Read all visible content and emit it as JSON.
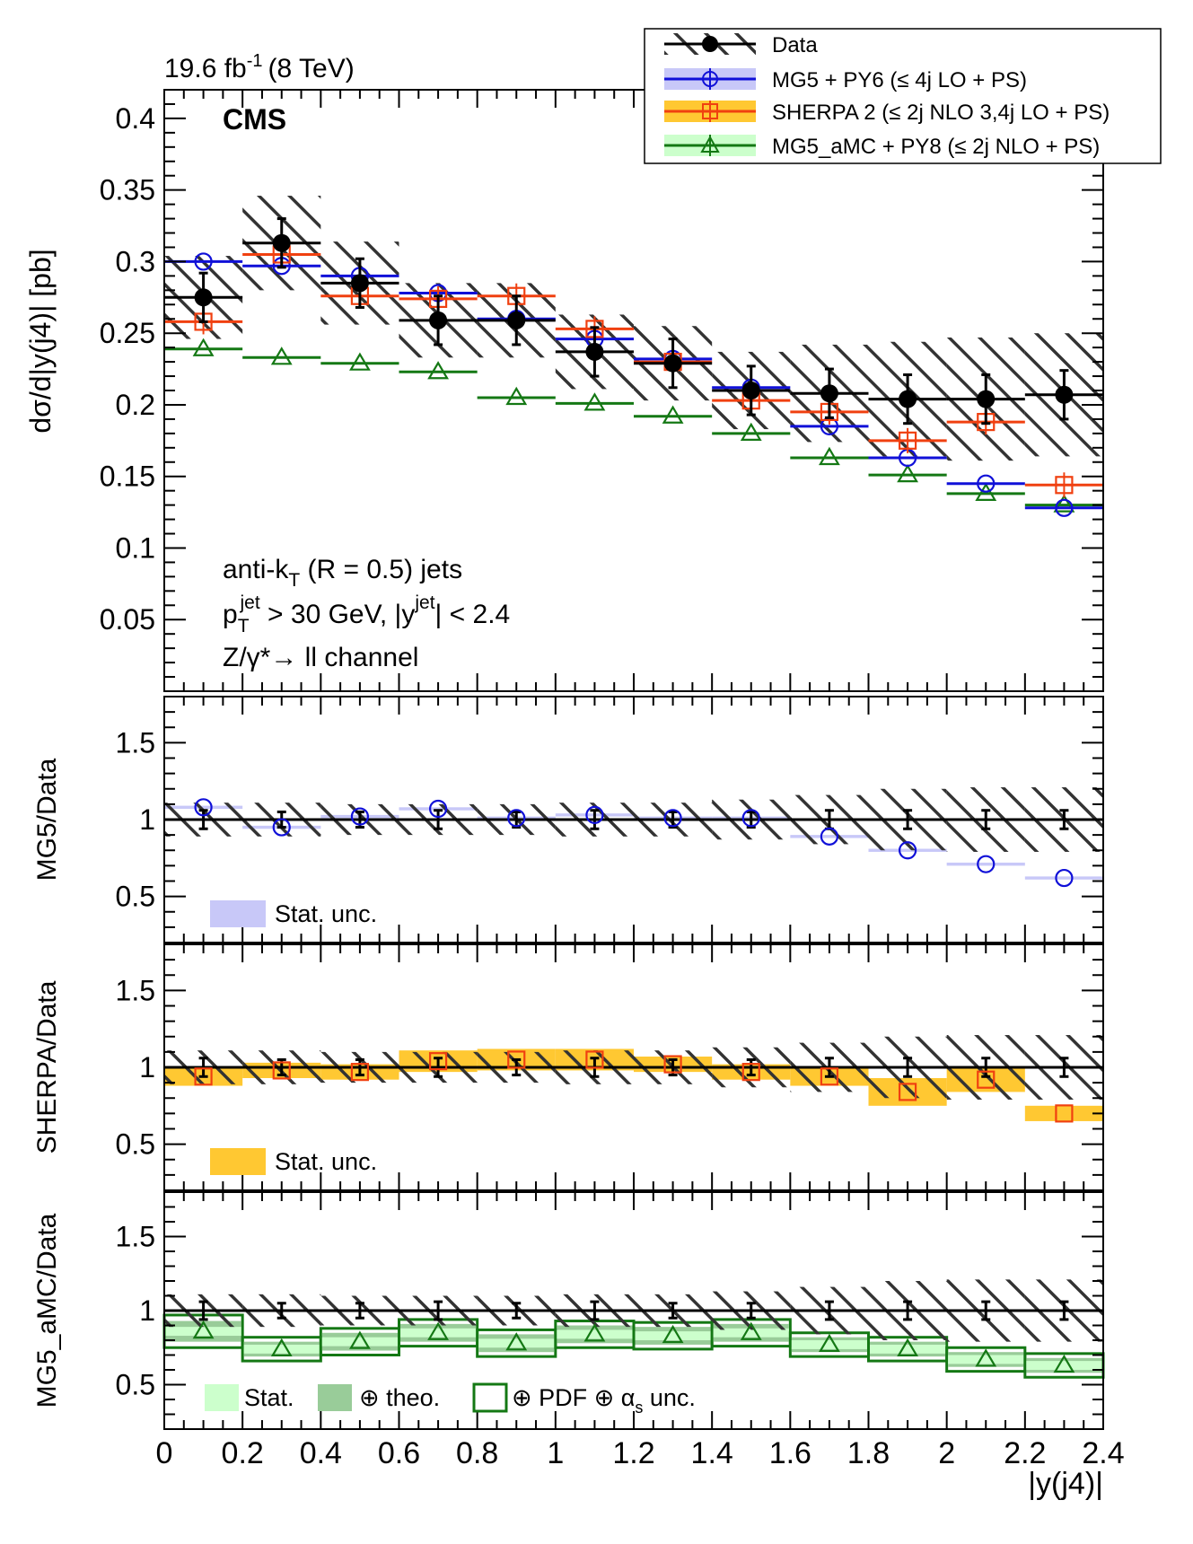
{
  "header": {
    "lumi": "19.6 fb",
    "lumi_sup": "-1",
    "energy": "(8 TeV)",
    "experiment": "CMS"
  },
  "legend": [
    {
      "key": "data",
      "label": "Data"
    },
    {
      "key": "mg5",
      "label": "MG5 + PY6 (≤ 4j LO + PS)"
    },
    {
      "key": "sherpa",
      "label": "SHERPA 2 (≤ 2j NLO 3,4j LO + PS)"
    },
    {
      "key": "amc",
      "label": "MG5_aMC + PY8 (≤ 2j NLO + PS)"
    }
  ],
  "annotations": {
    "line1": "anti-k",
    "line1_sub": "T",
    "line1_rest": " (R = 0.5) jets",
    "line2_p": "p",
    "line2_p_sub": "T",
    "line2_p_sup": "jet",
    "line2_mid": " > 30 GeV, |y",
    "line2_y_sup": "jet",
    "line2_end": "| < 2.4",
    "line3": "Z/γ*→ ll channel"
  },
  "ratio_legends": {
    "mg5": "Stat. unc.",
    "sherpa": "Stat. unc.",
    "amc_stat": "Stat.",
    "amc_theo": "⊕ theo.",
    "amc_pdf": "⊕ PDF ⊕ α",
    "amc_pdf_sub": "s",
    "amc_pdf_end": " unc."
  },
  "colors": {
    "data": "#000000",
    "mg5": "#1010d8",
    "mg5_band": "#c8c8f8",
    "sherpa": "#f04010",
    "sherpa_band": "#ffc832",
    "amc": "#147814",
    "amc_stat": "#ccffcc",
    "amc_theo": "#99cc99"
  },
  "chart_data": {
    "type": "scatter",
    "title": "",
    "xlabel": "|y(j4)|",
    "ylabel_main": "dσ/d|y(j4)|  [pb]",
    "xlim": [
      0,
      2.4
    ],
    "x_ticks": [
      "0",
      "0.2",
      "0.4",
      "0.6",
      "0.8",
      "1",
      "1.2",
      "1.4",
      "1.6",
      "1.8",
      "2",
      "2.2",
      "2.4"
    ],
    "bin_edges": [
      0,
      0.2,
      0.4,
      0.6,
      0.8,
      1.0,
      1.2,
      1.4,
      1.6,
      1.8,
      2.0,
      2.2,
      2.4
    ],
    "main": {
      "ylim": [
        0,
        0.42
      ],
      "y_ticks": [
        "0.05",
        "0.1",
        "0.15",
        "0.2",
        "0.25",
        "0.3",
        "0.35",
        "0.4"
      ],
      "series": [
        {
          "name": "Data",
          "values": [
            0.275,
            0.313,
            0.285,
            0.259,
            0.259,
            0.237,
            0.229,
            0.21,
            0.208,
            0.204,
            0.204,
            0.207
          ],
          "stat_err": [
            0.012,
            0.012,
            0.012,
            0.012,
            0.012,
            0.012,
            0.012,
            0.012,
            0.012,
            0.012,
            0.012,
            0.012
          ],
          "syst_err": [
            0.029,
            0.033,
            0.029,
            0.026,
            0.026,
            0.026,
            0.026,
            0.027,
            0.034,
            0.04,
            0.043,
            0.043
          ]
        },
        {
          "name": "MG5 + PY6",
          "values": [
            0.3,
            0.297,
            0.29,
            0.278,
            0.26,
            0.246,
            0.232,
            0.212,
            0.185,
            0.163,
            0.145,
            0.128
          ]
        },
        {
          "name": "SHERPA 2",
          "values": [
            0.258,
            0.305,
            0.276,
            0.274,
            0.276,
            0.253,
            0.23,
            0.203,
            0.195,
            0.175,
            0.188,
            0.144
          ]
        },
        {
          "name": "MG5_aMC + PY8",
          "values": [
            0.239,
            0.233,
            0.229,
            0.223,
            0.205,
            0.201,
            0.192,
            0.18,
            0.163,
            0.151,
            0.138,
            0.13
          ]
        }
      ]
    },
    "ratio_ylim": [
      0.2,
      1.8
    ],
    "ratio_y_ticks": [
      "0.5",
      "1",
      "1.5"
    ],
    "ratios": [
      {
        "ylabel": "MG5/Data",
        "values": [
          1.08,
          0.95,
          1.02,
          1.07,
          1.01,
          1.03,
          1.01,
          1.01,
          0.89,
          0.8,
          0.71,
          0.62
        ],
        "band": [
          0.01,
          0.01,
          0.01,
          0.01,
          0.01,
          0.01,
          0.01,
          0.01,
          0.01,
          0.01,
          0.01,
          0.01
        ]
      },
      {
        "ylabel": "SHERPA/Data",
        "values": [
          0.94,
          0.98,
          0.97,
          1.04,
          1.05,
          1.05,
          1.02,
          0.97,
          0.94,
          0.84,
          0.92,
          0.7
        ],
        "band": [
          0.06,
          0.05,
          0.05,
          0.07,
          0.07,
          0.07,
          0.05,
          0.05,
          0.06,
          0.09,
          0.08,
          0.05
        ]
      },
      {
        "ylabel": "MG5_aMC/Data",
        "values": [
          0.86,
          0.74,
          0.79,
          0.85,
          0.78,
          0.84,
          0.83,
          0.85,
          0.77,
          0.74,
          0.67,
          0.63
        ],
        "stat": [
          0.03,
          0.03,
          0.03,
          0.03,
          0.03,
          0.03,
          0.03,
          0.03,
          0.03,
          0.03,
          0.03,
          0.03
        ],
        "theo": [
          0.07,
          0.05,
          0.06,
          0.06,
          0.06,
          0.06,
          0.06,
          0.06,
          0.05,
          0.05,
          0.05,
          0.05
        ],
        "total": [
          0.11,
          0.08,
          0.09,
          0.09,
          0.09,
          0.09,
          0.09,
          0.09,
          0.08,
          0.08,
          0.08,
          0.08
        ]
      }
    ],
    "data_ratio_err": [
      0.06,
      0.05,
      0.05,
      0.06,
      0.05,
      0.06,
      0.05,
      0.05,
      0.06,
      0.06,
      0.06,
      0.06
    ],
    "data_syst_ratio": [
      0.11,
      0.11,
      0.1,
      0.1,
      0.1,
      0.11,
      0.11,
      0.13,
      0.16,
      0.2,
      0.21,
      0.21
    ]
  }
}
